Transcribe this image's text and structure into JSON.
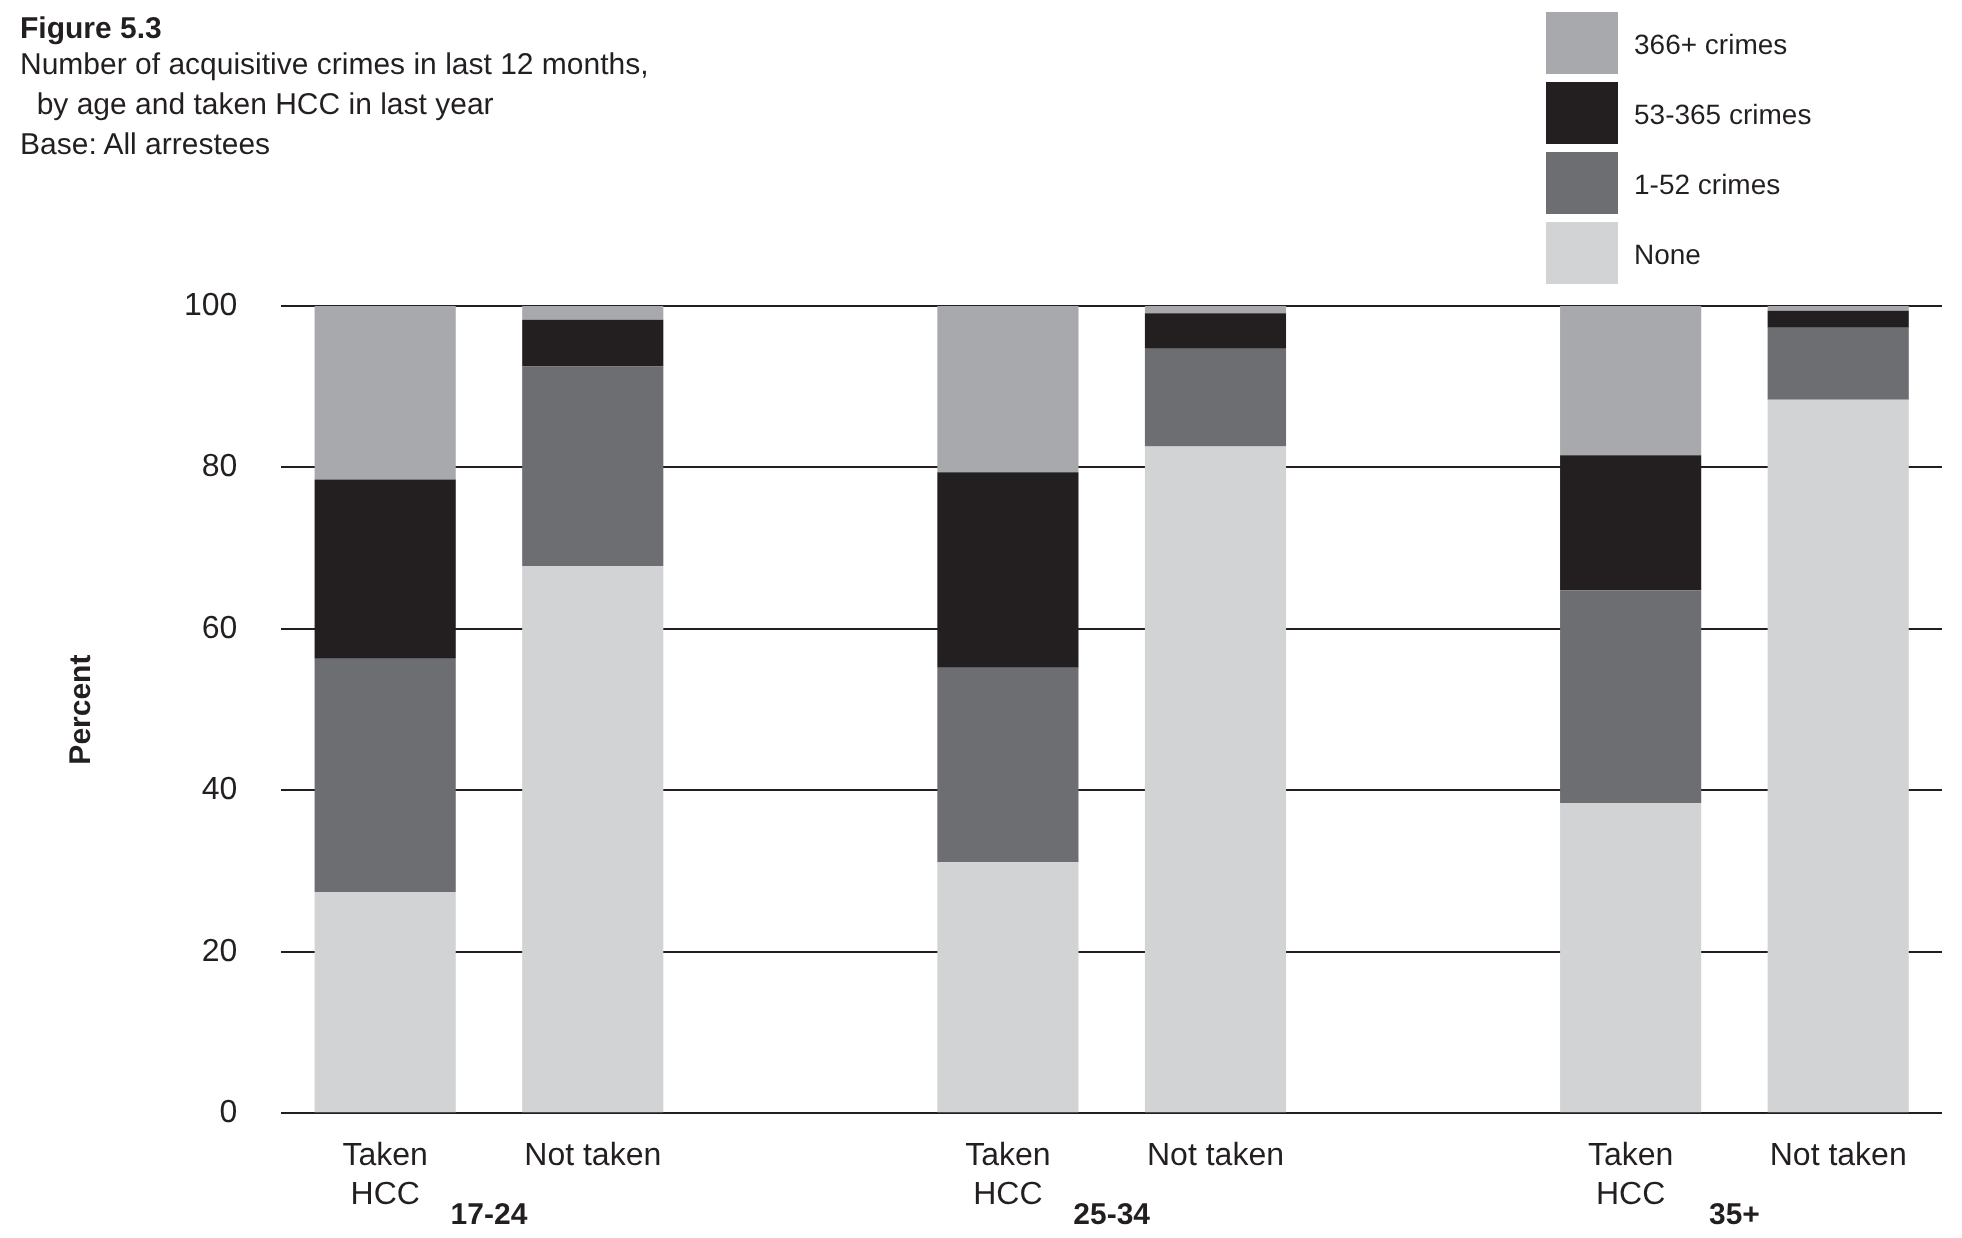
{
  "chart_data": {
    "type": "bar",
    "title": "Figure 5.3",
    "subtitle": "Number of acquisitive crimes in last 12 months,\n  by age and taken HCC in last year\nBase: All arrestees",
    "ylabel": "Percent",
    "categories": [
      "Taken\nHCC",
      "Not taken",
      null,
      "Taken\nHCC",
      "Not taken",
      null,
      "Taken\nHCC",
      "Not taken"
    ],
    "series": [
      {
        "name": "None",
        "color": "#d1d3d4",
        "values": [
          27.4,
          67.8,
          null,
          31.1,
          82.6,
          null,
          38.4,
          88.4
        ]
      },
      {
        "name": "1-52 crimes",
        "color": "#6d6e71",
        "values": [
          28.9,
          24.7,
          null,
          24.1,
          12.1,
          null,
          26.4,
          8.9
        ]
      },
      {
        "name": "53-365 crimes",
        "color": "#231f20",
        "values": [
          22.2,
          5.8,
          null,
          24.2,
          4.4,
          null,
          16.7,
          2.1
        ]
      },
      {
        "name": "366+ crimes",
        "color": "#a7a9ac",
        "values": [
          21.5,
          1.7,
          null,
          20.6,
          0.9,
          null,
          18.5,
          0.6
        ]
      }
    ],
    "stacked": true,
    "ylim": [
      0,
      100
    ],
    "yticks": [
      0,
      20,
      40,
      60,
      80,
      100
    ],
    "grid": "y",
    "legend": "top right",
    "annotations": [
      "17-24",
      "25-34",
      "35+"
    ]
  }
}
